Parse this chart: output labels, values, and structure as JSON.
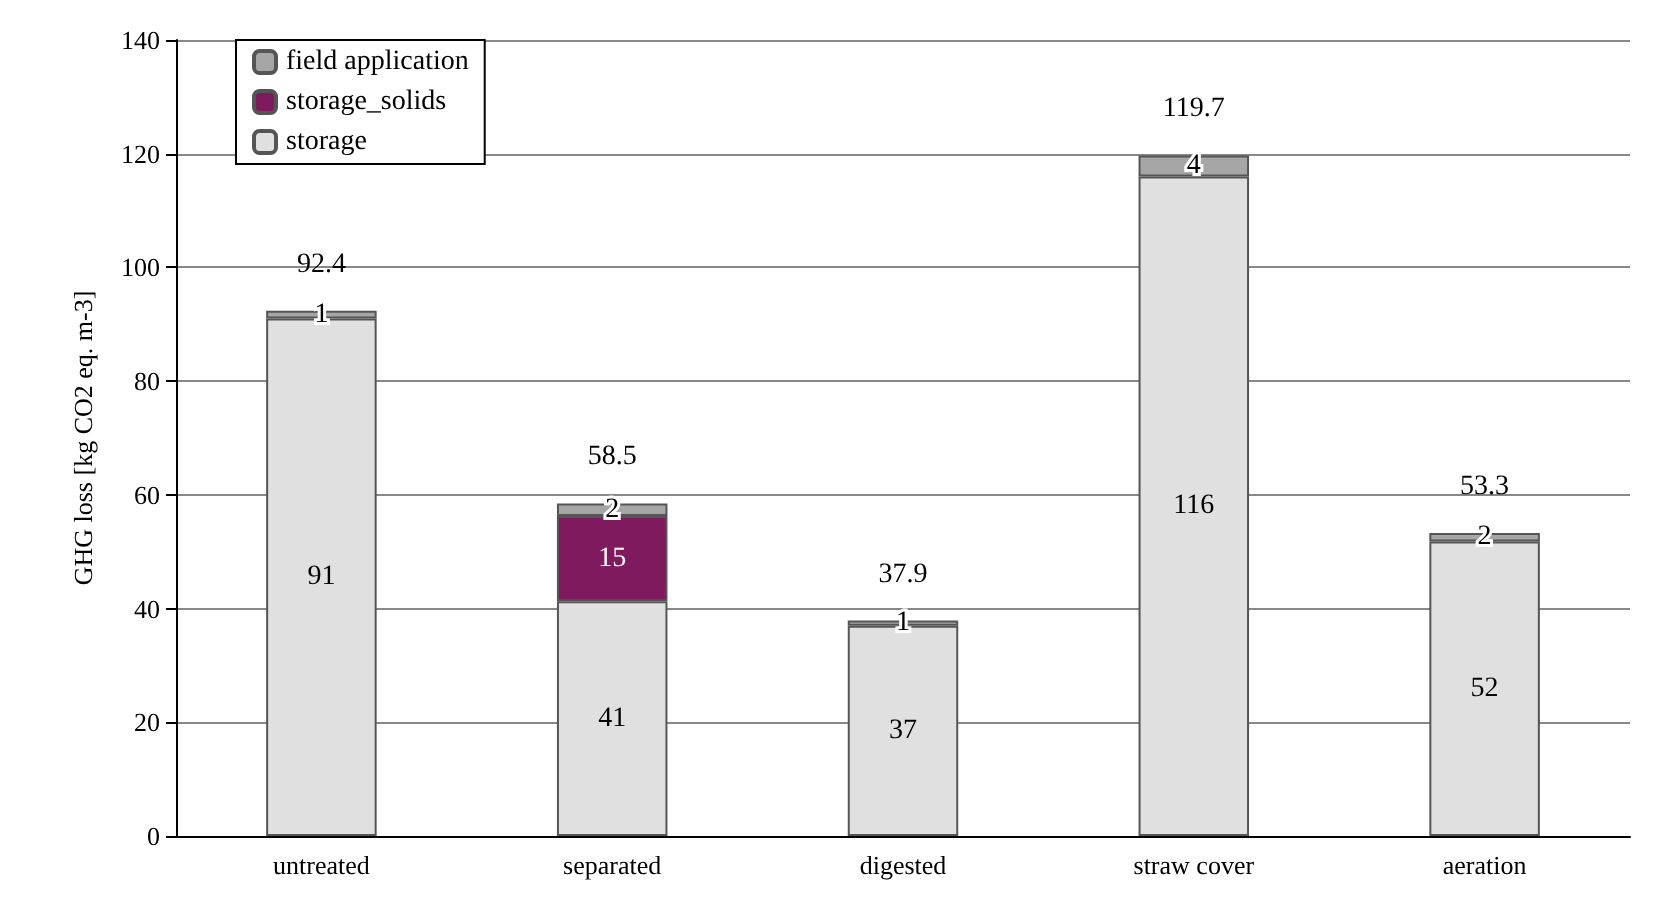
{
  "chart_data": {
    "type": "bar",
    "stacked": true,
    "ylabel": "GHG loss [kg CO2 eq. m-3]",
    "categories": [
      "untreated",
      "separated",
      "digested",
      "straw cover",
      "aeration"
    ],
    "series": [
      {
        "name": "storage",
        "color": "#e0e0e0",
        "values": [
          91,
          41.3,
          37,
          116,
          51.8
        ],
        "value_labels": [
          "91",
          "41",
          "37",
          "116",
          "52"
        ]
      },
      {
        "name": "storage_solids",
        "color": "#7f1a5e",
        "values": [
          null,
          15,
          null,
          null,
          null
        ],
        "value_labels": [
          null,
          "15",
          null,
          null,
          null
        ]
      },
      {
        "name": "field application",
        "color": "#a6a6a6",
        "values": [
          1.4,
          2.2,
          0.9,
          3.7,
          1.5
        ],
        "value_labels": [
          "1",
          "2",
          "1",
          "4",
          "2"
        ]
      }
    ],
    "totals": [
      "92.4",
      "58.5",
      "37.9",
      "119.7",
      "53.3"
    ],
    "ylim": [
      0,
      140
    ],
    "yticks": [
      0,
      20,
      40,
      60,
      80,
      100,
      120,
      140
    ],
    "grid": "y",
    "legend": "top left"
  }
}
